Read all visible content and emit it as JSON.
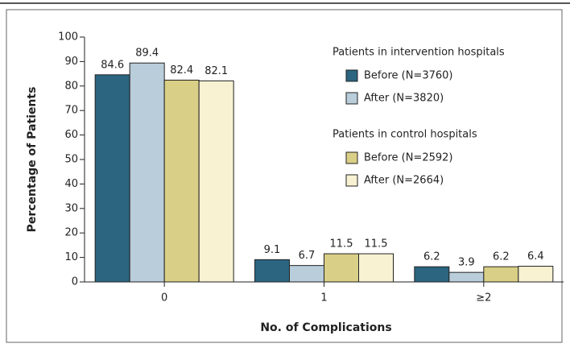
{
  "chart_data": {
    "type": "bar",
    "x_label": "No. of Complications",
    "y_label": "Percentage of Patients",
    "categories": [
      "0",
      "1",
      "≥2"
    ],
    "ylim": [
      0,
      100
    ],
    "yticks": [
      0,
      10,
      20,
      30,
      40,
      50,
      60,
      70,
      80,
      90,
      100
    ],
    "legend_groups": [
      {
        "title": "Patients in intervention hospitals",
        "series": [
          {
            "name": "Before (N=3760)",
            "color": "#2b6580",
            "values": [
              84.6,
              9.1,
              6.2
            ]
          },
          {
            "name": "After (N=3820)",
            "color": "#b9cdda",
            "values": [
              89.4,
              6.7,
              3.9
            ]
          }
        ]
      },
      {
        "title": "Patients in control hospitals",
        "series": [
          {
            "name": "Before (N=2592)",
            "color": "#d9cf86",
            "values": [
              82.4,
              11.5,
              6.2
            ]
          },
          {
            "name": "After (N=2664)",
            "color": "#f8f1d2",
            "values": [
              82.1,
              11.5,
              6.4
            ]
          }
        ]
      }
    ]
  }
}
